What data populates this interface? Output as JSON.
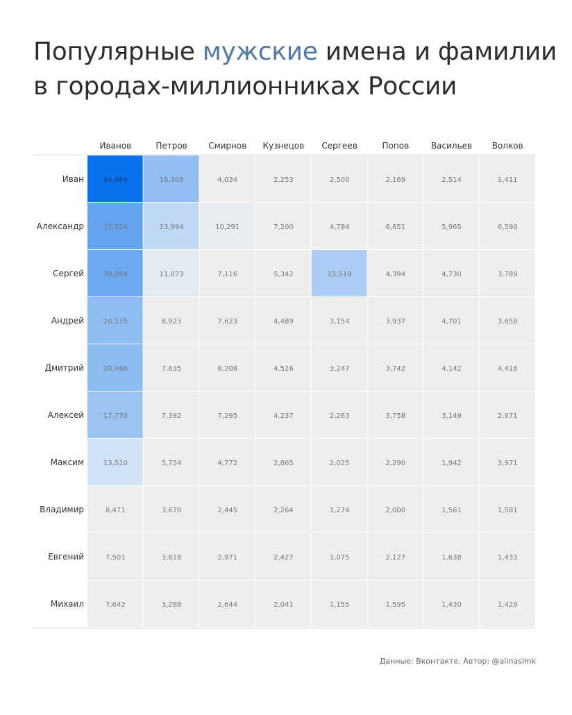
{
  "title": {
    "before": "Популярные ",
    "accent": "мужские",
    "after": " имена и фамилии",
    "line2": "в городах-миллионниках России"
  },
  "footer": "Данные: Вконтакте. Автор: @alinaslmk",
  "colors": {
    "accent": "#4e79a7",
    "cell_background": "#efefef",
    "max_cell": "#0a72ec",
    "light_cell": "#dce7f4"
  },
  "chart_data": {
    "type": "heatmap",
    "title": "",
    "columns": [
      "Иванов",
      "Петров",
      "Смирнов",
      "Кузнецов",
      "Сергеев",
      "Попов",
      "Васильев",
      "Волков"
    ],
    "rows": [
      "Иван",
      "Александр",
      "Сергей",
      "Андрей",
      "Дмитрий",
      "Алексей",
      "Максим",
      "Владимир",
      "Евгений",
      "Михаил"
    ],
    "values": [
      [
        84886,
        19308,
        4034,
        2253,
        2500,
        2169,
        2514,
        1411
      ],
      [
        32554,
        13994,
        10291,
        7200,
        4784,
        6651,
        5965,
        6590
      ],
      [
        30094,
        11073,
        7116,
        5342,
        15519,
        4394,
        4730,
        3789
      ],
      [
        20175,
        8923,
        7623,
        4489,
        3154,
        3937,
        4701,
        3658
      ],
      [
        20466,
        7635,
        6208,
        4526,
        3247,
        3742,
        4142,
        4418
      ],
      [
        17770,
        7392,
        7295,
        4237,
        2263,
        3758,
        3149,
        2971
      ],
      [
        13510,
        5754,
        4772,
        2865,
        2025,
        2290,
        1942,
        3971
      ],
      [
        8471,
        3670,
        2445,
        2264,
        1274,
        2000,
        1561,
        1581
      ],
      [
        7501,
        3618,
        2971,
        2427,
        1075,
        2127,
        1638,
        1433
      ],
      [
        7642,
        3288,
        2644,
        2041,
        1155,
        1595,
        1430,
        1429
      ]
    ],
    "value_format": "comma-thousands",
    "grid": true,
    "legend": "none"
  }
}
